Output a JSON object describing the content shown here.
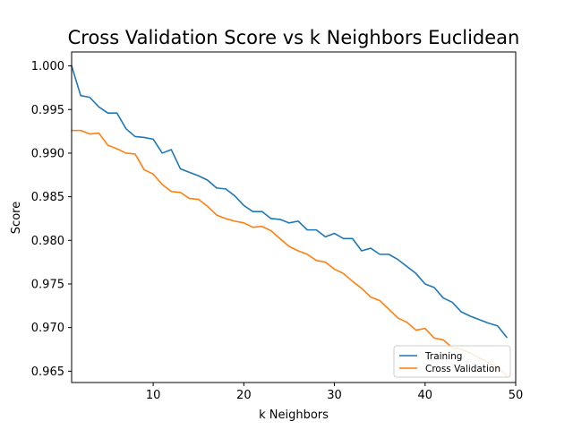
{
  "chart_data": {
    "type": "line",
    "title": "Cross Validation Score vs k Neighbors Euclidean",
    "xlabel": "k Neighbors",
    "ylabel": "Score",
    "xlim": [
      1,
      50
    ],
    "ylim": [
      0.9637,
      1.0016
    ],
    "xticks": [
      10,
      20,
      30,
      40,
      50
    ],
    "yticks": [
      0.965,
      0.97,
      0.975,
      0.98,
      0.985,
      0.99,
      0.995,
      1.0
    ],
    "ytick_labels": [
      "0.965",
      "0.970",
      "0.975",
      "0.980",
      "0.985",
      "0.990",
      "0.995",
      "1.000"
    ],
    "grid": false,
    "legend_position": "lower-right",
    "x": [
      1,
      2,
      3,
      4,
      5,
      6,
      7,
      8,
      9,
      10,
      11,
      12,
      13,
      14,
      15,
      16,
      17,
      18,
      19,
      20,
      21,
      22,
      23,
      24,
      25,
      26,
      27,
      28,
      29,
      30,
      31,
      32,
      33,
      34,
      35,
      36,
      37,
      38,
      39,
      40,
      41,
      42,
      43,
      44,
      45,
      46,
      47,
      48,
      49
    ],
    "series": [
      {
        "name": "Training",
        "color": "#1f77b4",
        "values": [
          1.0,
          0.9966,
          0.9964,
          0.9953,
          0.9946,
          0.9946,
          0.9928,
          0.9919,
          0.9918,
          0.9916,
          0.99,
          0.9904,
          0.9882,
          0.9878,
          0.9874,
          0.9869,
          0.986,
          0.9859,
          0.9851,
          0.984,
          0.9833,
          0.9833,
          0.9825,
          0.9824,
          0.982,
          0.9822,
          0.9812,
          0.9812,
          0.9804,
          0.9808,
          0.9802,
          0.9802,
          0.9788,
          0.9791,
          0.9784,
          0.9784,
          0.9778,
          0.977,
          0.9762,
          0.975,
          0.9746,
          0.9734,
          0.9729,
          0.9718,
          0.9713,
          0.9709,
          0.9705,
          0.9702,
          0.9689
        ]
      },
      {
        "name": "Cross Validation",
        "color": "#ff7f0e",
        "values": [
          0.9926,
          0.9926,
          0.9922,
          0.9923,
          0.9909,
          0.9905,
          0.99,
          0.9899,
          0.9881,
          0.9876,
          0.9864,
          0.9856,
          0.9855,
          0.9848,
          0.9847,
          0.9839,
          0.9829,
          0.9825,
          0.9822,
          0.982,
          0.9815,
          0.9816,
          0.9811,
          0.9802,
          0.9793,
          0.9788,
          0.9784,
          0.9777,
          0.9775,
          0.9767,
          0.9762,
          0.9753,
          0.9745,
          0.9735,
          0.9731,
          0.9721,
          0.9711,
          0.9706,
          0.9697,
          0.9699,
          0.9688,
          0.9686,
          0.9677,
          0.9675,
          0.9671,
          0.9665,
          0.966,
          0.9655,
          0.9645
        ]
      }
    ]
  }
}
